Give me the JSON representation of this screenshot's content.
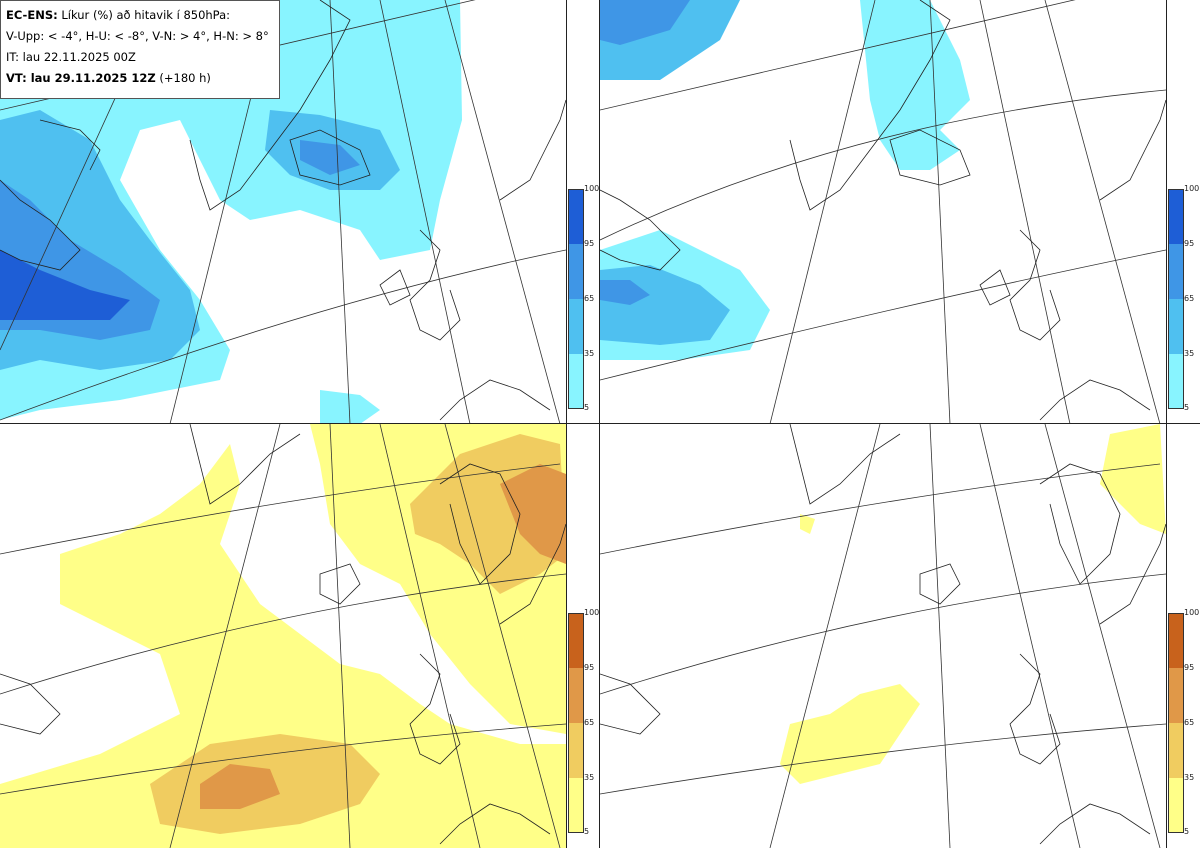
{
  "info": {
    "line1_bold": "EC-ENS:",
    "line1_rest": "Líkur (%) að hitavik í 850hPa:",
    "line2": "V-Upp: < -4°, H-U: < -8°, V-N: > 4°, H-N: > 8°",
    "line3": "IT: lau 22.11.2025 00Z",
    "line4_bold": "VT: lau 29.11.2025 12Z",
    "line4_rest": "(+180 h)"
  },
  "colorbar": {
    "ticks": [
      "100",
      "95",
      "65",
      "35",
      "5"
    ]
  },
  "colors": {
    "cold": [
      "#88f4ff",
      "#4fc0f0",
      "#3f96e6",
      "#1e5ed6"
    ],
    "warm": [
      "#ffff88",
      "#f0cc60",
      "#e09848",
      "#c8621c"
    ],
    "line": "#333333"
  },
  "panels": [
    {
      "name": "top-left",
      "theme": "cold"
    },
    {
      "name": "top-right",
      "theme": "cold"
    },
    {
      "name": "bottom-left",
      "theme": "warm"
    },
    {
      "name": "bottom-right",
      "theme": "warm"
    }
  ]
}
